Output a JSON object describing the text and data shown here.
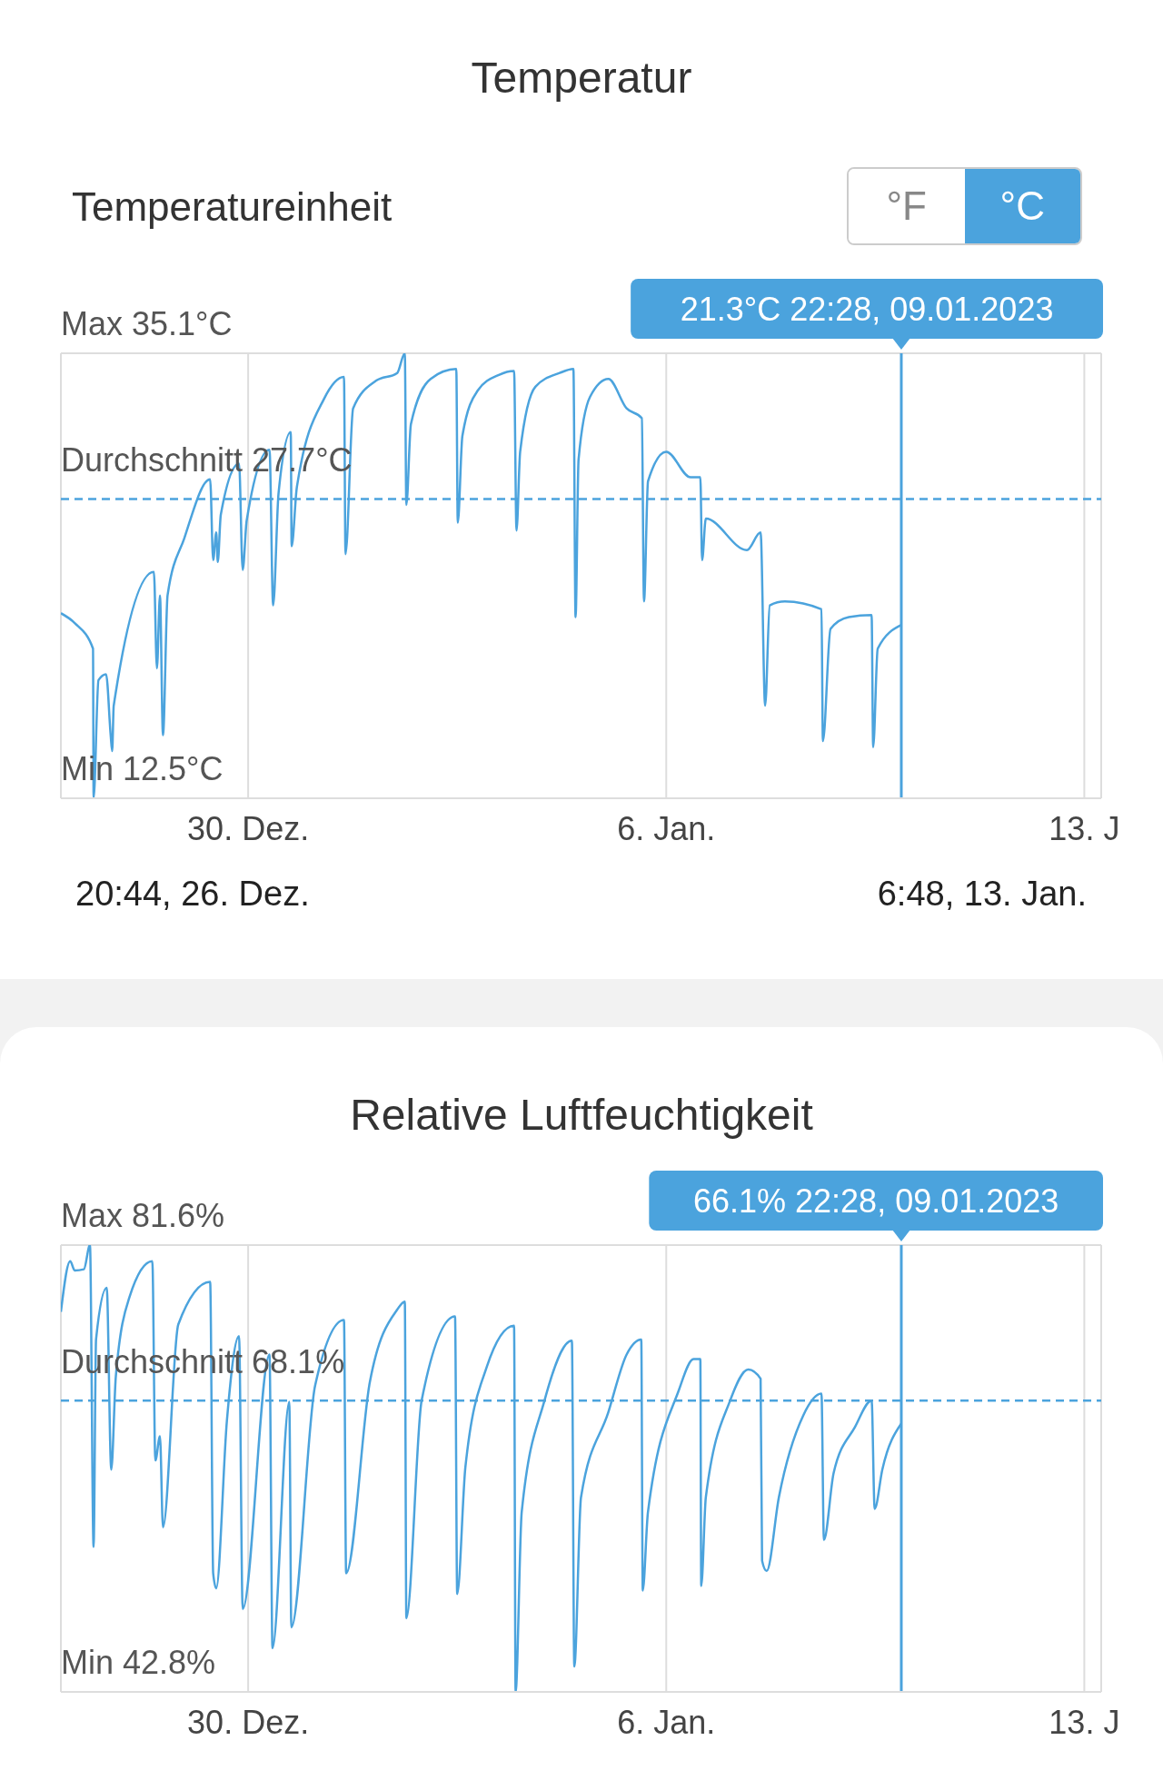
{
  "chart_data": [
    {
      "type": "line",
      "title": "Temperatur",
      "annotations": [
        "Temperatureinheit",
        "°F",
        "°C",
        "20:44, 26. Dez.",
        "6:48, 13. Jan.",
        "Max",
        "Min"
      ],
      "xlim": [
        "2022-12-26T20:44",
        "2023-01-13T06:48"
      ],
      "xticks": [
        {
          "value": "2022-12-30",
          "label": "30. Dez."
        },
        {
          "value": "2023-01-06",
          "label": "6. Jan."
        },
        {
          "value": "2023-01-13",
          "label": "13. J"
        }
      ],
      "ylim": [
        12.5,
        35.1
      ],
      "yticks": [
        {
          "value": 12.5,
          "label": "12.5°C"
        },
        {
          "value": 35.1,
          "label": "35.1°C"
        }
      ],
      "grid": true,
      "ref_lines": [
        {
          "axis": "y",
          "value": 27.7,
          "label": "Durchschnitt 27.7°C",
          "color": "#4ba3dd",
          "line_style": "dashed"
        },
        {
          "axis": "x",
          "value": "2023-01-09T22:28",
          "label": "21.3°C 22:28, 09.01.2023",
          "color": "#4ba3dd",
          "line_style": "solid"
        }
      ],
      "color": "#4ba3dd",
      "x": [
        "2022-12-26T20:44",
        "2022-12-27T02:18",
        "2022-12-27T09:39",
        "2022-12-27T09:53",
        "2022-12-27T11:51",
        "2022-12-27T14:54",
        "2022-12-27T16:45",
        "2022-12-27T17:21",
        "2022-12-27T17:58",
        "2022-12-28T10:06",
        "2022-12-28T11:20",
        "2022-12-28T12:33",
        "2022-12-28T13:46",
        "2022-12-28T15:36",
        "2022-12-28T22:19",
        "2022-12-29T08:43",
        "2022-12-29T09:56",
        "2022-12-29T11:10",
        "2022-12-29T11:47",
        "2022-12-29T13:00",
        "2022-12-29T20:20",
        "2022-12-29T21:48",
        "2022-12-29T23:24",
        "2022-12-30T08:34",
        "2022-12-30T10:02",
        "2022-12-30T12:13",
        "2022-12-30T17:07",
        "2022-12-30T17:28",
        "2022-12-30T19:34",
        "2022-12-31T06:33",
        "2022-12-31T14:30",
        "2022-12-31T15:07",
        "2022-12-31T18:10",
        "2023-01-01T03:20",
        "2023-01-01T11:54",
        "2023-01-01T14:57",
        "2023-01-01T15:34",
        "2023-01-01T17:24",
        "2023-01-02T01:20",
        "2023-01-02T11:38",
        "2023-01-02T12:14",
        "2023-01-02T14:05",
        "2023-01-02T20:11",
        "2023-01-03T04:44",
        "2023-01-03T10:51",
        "2023-01-03T11:50",
        "2023-01-03T13:18",
        "2023-01-03T19:25",
        "2023-01-04T05:11",
        "2023-01-04T10:42",
        "2023-01-04T11:34",
        "2023-01-04T12:46",
        "2023-01-04T17:25",
        "2023-01-05T00:45",
        "2023-01-05T08:05",
        "2023-01-05T14:12",
        "2023-01-05T15:04",
        "2023-01-05T16:41",
        "2023-01-06T00:00",
        "2023-01-06T09:47",
        "2023-01-06T13:42",
        "2023-01-06T14:25",
        "2023-01-06T15:55",
        "2023-01-07T08:24",
        "2023-01-07T13:55",
        "2023-01-07T15:45",
        "2023-01-07T17:36",
        "2023-01-07T23:41",
        "2023-01-08T14:23",
        "2023-01-08T14:58",
        "2023-01-08T18:01",
        "2023-01-09T01:22",
        "2023-01-09T10:32",
        "2023-01-09T11:10",
        "2023-01-09T12:59",
        "2023-01-09T22:28"
      ],
      "values": [
        21.9,
        21.4,
        20.1,
        12.5,
        18.5,
        18.8,
        15.7,
        14.9,
        17.2,
        24.0,
        19.1,
        22.8,
        15.7,
        22.8,
        25.7,
        28.7,
        24.6,
        26.0,
        24.5,
        26.9,
        29.5,
        24.1,
        26.6,
        30.2,
        22.3,
        28.0,
        31.1,
        25.3,
        28.3,
        32.8,
        33.9,
        24.9,
        32.3,
        33.7,
        34.1,
        35.1,
        27.4,
        31.5,
        33.8,
        34.3,
        26.5,
        30.9,
        33.2,
        34.0,
        34.2,
        26.1,
        30.1,
        33.4,
        34.1,
        34.3,
        21.7,
        29.7,
        32.9,
        33.8,
        32.3,
        31.8,
        22.5,
        28.6,
        30.1,
        28.8,
        28.8,
        24.6,
        26.7,
        25.1,
        26.0,
        17.2,
        22.3,
        22.5,
        22.1,
        15.4,
        21.1,
        21.7,
        21.8,
        15.1,
        20.1,
        21.3
      ]
    },
    {
      "type": "line",
      "title": "Relative Luftfeuchtigkeit",
      "xlim": [
        "2022-12-26T20:44",
        "2023-01-13T06:48"
      ],
      "xticks": [
        {
          "value": "2022-12-30",
          "label": "30. Dez."
        },
        {
          "value": "2023-01-06",
          "label": "6. Jan."
        },
        {
          "value": "2023-01-13",
          "label": "13. J"
        }
      ],
      "ylim": [
        42.8,
        81.6
      ],
      "yticks": [
        {
          "value": 42.8,
          "label": "42.8%"
        },
        {
          "value": 81.6,
          "label": "81.6%"
        }
      ],
      "annotations": [
        "Max",
        "Min"
      ],
      "grid": true,
      "ref_lines": [
        {
          "axis": "y",
          "value": 68.1,
          "label": "Durchschnitt 68.1%",
          "color": "#4ba3dd",
          "line_style": "dashed"
        },
        {
          "axis": "x",
          "value": "2023-01-09T22:28",
          "label": "66.1% 22:28, 09.01.2023",
          "color": "#4ba3dd",
          "line_style": "solid"
        }
      ],
      "color": "#4ba3dd",
      "x": [
        "2022-12-26T20:44",
        "2022-12-27T00:29",
        "2022-12-27T02:18",
        "2022-12-27T05:59",
        "2022-12-27T08:25",
        "2022-12-27T09:53",
        "2022-12-27T10:52",
        "2022-12-27T15:09",
        "2022-12-27T16:59",
        "2022-12-27T18:49",
        "2022-12-28T00:19",
        "2022-12-28T09:29",
        "2022-12-28T10:42",
        "2022-12-28T12:33",
        "2022-12-28T13:46",
        "2022-12-28T19:54",
        "2022-12-29T08:43",
        "2022-12-29T09:56",
        "2022-12-29T11:10",
        "2022-12-29T15:26",
        "2022-12-29T20:20",
        "2022-12-29T21:48",
        "2022-12-30T08:34",
        "2022-12-30T09:47",
        "2022-12-30T16:31",
        "2022-12-30T17:21",
        "2022-12-31T02:54",
        "2022-12-31T14:30",
        "2022-12-31T15:22",
        "2023-01-01T00:53",
        "2023-01-01T11:54",
        "2023-01-01T14:57",
        "2023-01-01T15:34",
        "2023-01-01T21:42",
        "2023-01-02T11:08",
        "2023-01-02T12:00",
        "2023-01-02T15:17",
        "2023-01-02T23:51",
        "2023-01-03T10:51",
        "2023-01-03T11:28",
        "2023-01-03T13:55",
        "2023-01-03T23:05",
        "2023-01-04T10:05",
        "2023-01-04T11:04",
        "2023-01-04T13:45",
        "2023-01-05T00:45",
        "2023-01-05T08:05",
        "2023-01-05T13:58",
        "2023-01-05T14:34",
        "2023-01-05T16:39",
        "2023-01-06T04:54",
        "2023-01-06T11:01",
        "2023-01-06T13:42",
        "2023-01-06T14:04",
        "2023-01-06T15:55",
        "2023-01-07T01:41",
        "2023-01-07T09:00",
        "2023-01-07T13:55",
        "2023-01-07T14:31",
        "2023-01-07T16:22",
        "2023-01-07T21:16",
        "2023-01-08T07:03",
        "2023-01-08T14:23",
        "2023-01-08T15:22",
        "2023-01-08T19:16",
        "2023-01-09T03:50",
        "2023-01-09T10:32",
        "2023-01-09T11:46",
        "2023-01-09T14:50",
        "2023-01-09T22:28"
      ],
      "values": [
        75.8,
        80.2,
        79.4,
        79.5,
        81.6,
        55.4,
        73.4,
        77.9,
        62.1,
        70.2,
        77.1,
        80.2,
        62.9,
        65.0,
        57.1,
        74.7,
        78.4,
        53.1,
        51.8,
        66.3,
        73.7,
        50.0,
        72.1,
        46.6,
        68.0,
        48.4,
        69.4,
        75.1,
        53.1,
        69.7,
        76.0,
        76.7,
        49.2,
        68.1,
        75.4,
        51.3,
        62.3,
        71.0,
        74.6,
        42.8,
        58.4,
        68.1,
        73.3,
        45.0,
        59.7,
        67.1,
        72.1,
        73.4,
        51.6,
        58.4,
        68.9,
        71.7,
        71.7,
        52.0,
        59.7,
        68.1,
        70.8,
        70.0,
        54.2,
        53.3,
        59.7,
        66.8,
        68.7,
        56.0,
        61.8,
        65.8,
        68.1,
        58.7,
        62.1,
        66.1
      ]
    }
  ]
}
